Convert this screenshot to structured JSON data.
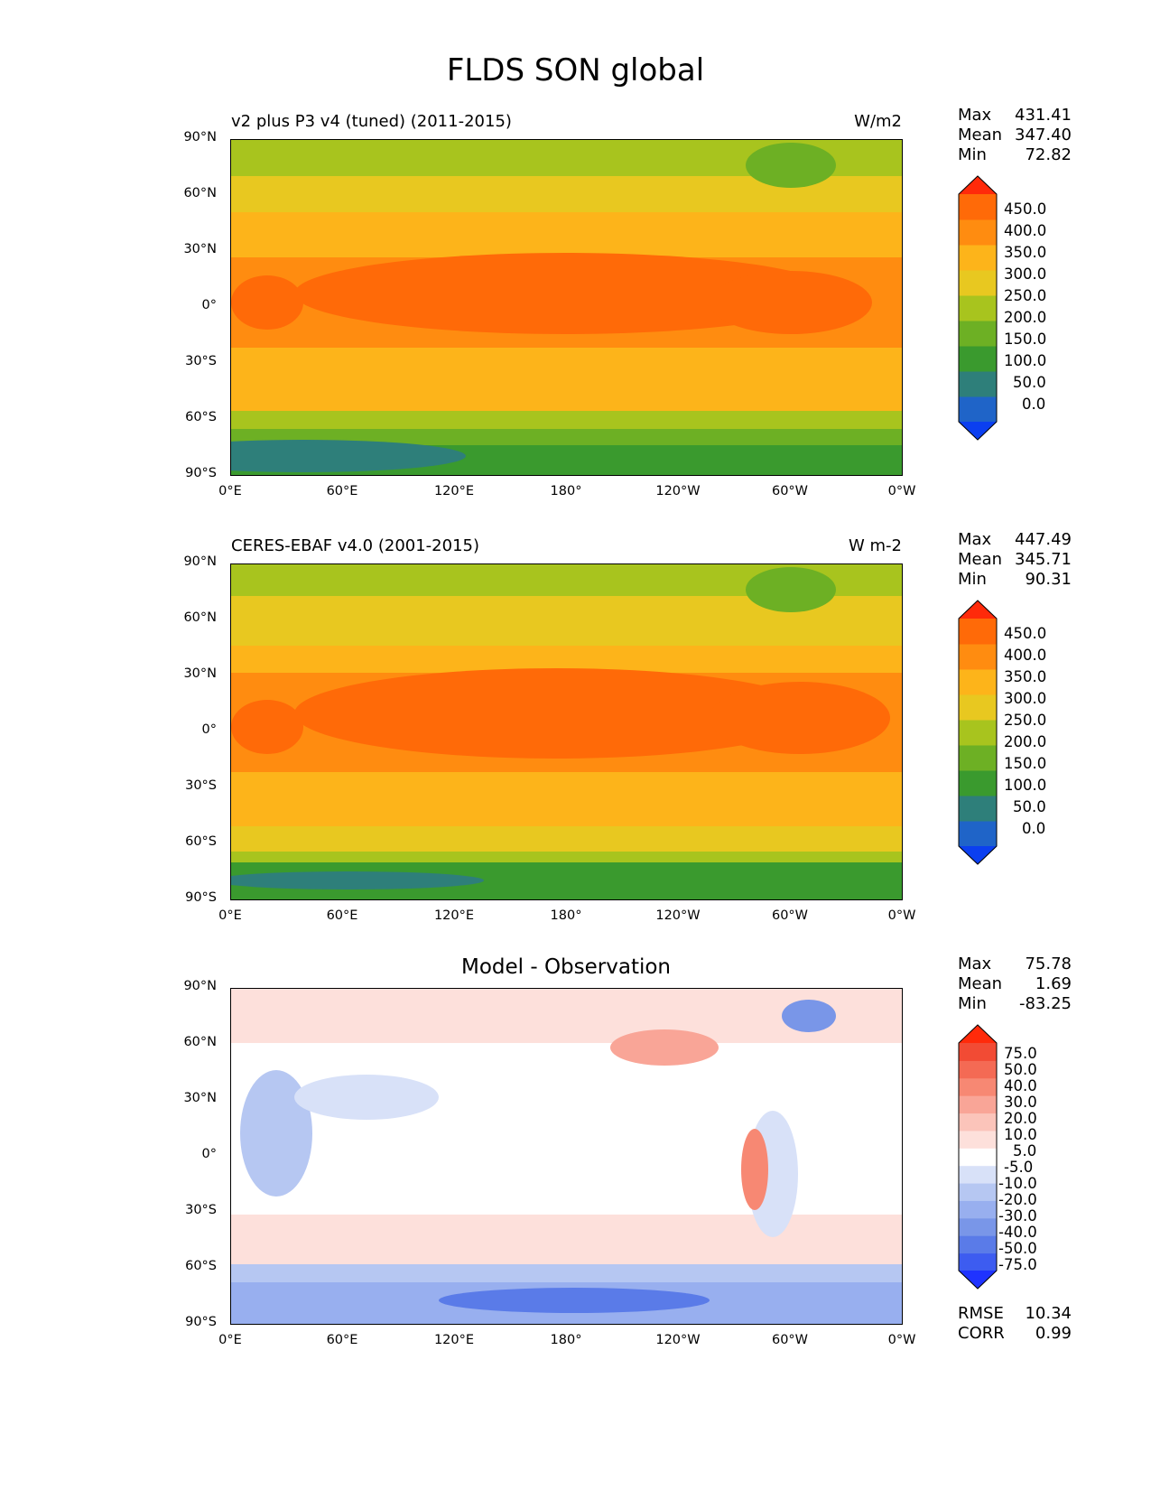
{
  "figure_title": "FLDS SON global",
  "x_ticks": [
    "0°E",
    "60°E",
    "120°E",
    "180°",
    "120°W",
    "60°W",
    "0°W"
  ],
  "y_ticks": [
    "90°N",
    "60°N",
    "30°N",
    "0°",
    "30°S",
    "60°S",
    "90°S"
  ],
  "colors": {
    "field_levels": [
      "#0b3ff0",
      "#1f64c8",
      "#2e7f7a",
      "#3a9a2e",
      "#6db024",
      "#a8c41e",
      "#e8c820",
      "#fdb41a",
      "#ff8c10",
      "#ff6a08",
      "#ff2a0a"
    ],
    "diff_levels": [
      "#1f33ff",
      "#3d5cf0",
      "#5a7be8",
      "#7996e8",
      "#98afef",
      "#b6c7f2",
      "#d8e1f8",
      "#ffffff",
      "#fde0db",
      "#fbc4ba",
      "#f9a597",
      "#f78873",
      "#f46a54",
      "#f24b34",
      "#ff2a0a"
    ],
    "coastline": "#000000"
  },
  "panels": [
    {
      "left_title": "v2 plus P3 v4 (tuned) (2011-2015)",
      "units": "W/m2",
      "stats": {
        "max_label": "Max",
        "max": "431.41",
        "mean_label": "Mean",
        "mean": "347.40",
        "min_label": "Min",
        "min": "72.82"
      },
      "colorbar_labels": [
        "450.0",
        "400.0",
        "350.0",
        "300.0",
        "250.0",
        "200.0",
        "150.0",
        "100.0",
        "50.0",
        "0.0"
      ]
    },
    {
      "left_title": "CERES-EBAF v4.0 (2001-2015)",
      "units": "W m-2",
      "stats": {
        "max_label": "Max",
        "max": "447.49",
        "mean_label": "Mean",
        "mean": "345.71",
        "min_label": "Min",
        "min": "90.31"
      },
      "colorbar_labels": [
        "450.0",
        "400.0",
        "350.0",
        "300.0",
        "250.0",
        "200.0",
        "150.0",
        "100.0",
        "50.0",
        "0.0"
      ]
    },
    {
      "center_title": "Model - Observation",
      "stats": {
        "max_label": "Max",
        "max": "75.78",
        "mean_label": "Mean",
        "mean": "1.69",
        "min_label": "Min",
        "min": "-83.25"
      },
      "colorbar_labels": [
        "75.0",
        "50.0",
        "40.0",
        "30.0",
        "20.0",
        "10.0",
        "5.0",
        "-5.0",
        "-10.0",
        "-20.0",
        "-30.0",
        "-40.0",
        "-50.0",
        "-75.0"
      ],
      "rmse_label": "RMSE",
      "rmse": "10.34",
      "corr_label": "CORR",
      "corr": "0.99"
    }
  ]
}
